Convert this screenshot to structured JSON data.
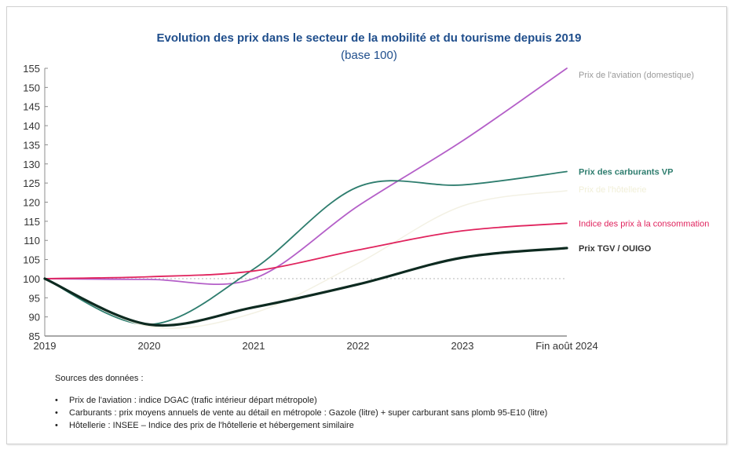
{
  "chart_data": {
    "type": "line",
    "title": "Evolution des prix dans le secteur de la mobilité et du tourisme depuis 2019",
    "subtitle": "(base 100)",
    "xlabel": "",
    "ylabel": "",
    "categories": [
      "2019",
      "2020",
      "2021",
      "2022",
      "2023",
      "Fin août 2024"
    ],
    "ylim": [
      85,
      155
    ],
    "yticks": [
      85,
      90,
      95,
      100,
      105,
      110,
      115,
      120,
      125,
      130,
      135,
      140,
      145,
      150,
      155
    ],
    "reference_line": {
      "value": 100,
      "style": "dotted",
      "color": "#bfbfbf"
    },
    "grid": false,
    "legend": "right-end-labels",
    "series": [
      {
        "name": "Prix de l'aviation (domestique)",
        "color": "#b45fc8",
        "label_color": "#9a9a9a",
        "values": [
          100,
          99.8,
          100,
          119,
          136,
          155
        ]
      },
      {
        "name": "Prix des carburants VP",
        "color": "#2e7d6e",
        "label_color": "#2e7d6e",
        "values": [
          100,
          88,
          102.5,
          124,
          124.5,
          128
        ]
      },
      {
        "name": "Prix de l'hôtellerie",
        "color": "#f3f1e4",
        "label_color": "#f1efd8",
        "values": [
          100,
          87.5,
          91,
          104,
          119,
          123
        ]
      },
      {
        "name": "Indice des prix à la consommation",
        "color": "#e0245e",
        "label_color": "#e0245e",
        "values": [
          100,
          100.5,
          102,
          107.5,
          112.5,
          114.5
        ]
      },
      {
        "name": "Prix TGV / OUIGO",
        "color": "#0d2a20",
        "label_color": "#333333",
        "values": [
          100,
          88,
          92.5,
          98.5,
          105.5,
          108
        ]
      }
    ]
  },
  "sources": {
    "heading": "Sources des données :",
    "items": [
      "Prix de l'aviation : indice DGAC (trafic intérieur départ métropole)",
      "Carburants : prix moyens annuels de vente au détail en métropole : Gazole (litre)  + super carburant sans plomb 95-E10 (litre)",
      "Hôtellerie : INSEE – Indice des prix de l'hôtellerie et hébergement similaire"
    ]
  }
}
